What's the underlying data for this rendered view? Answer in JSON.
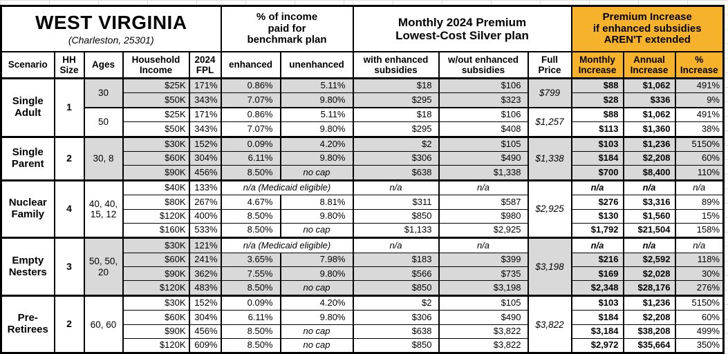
{
  "colors": {
    "accent_orange": "#F6B22A",
    "row_shade": "#D9D9D9",
    "border": "#000000",
    "gridline": "#DCDCDC"
  },
  "title": {
    "state": "WEST VIRGINIA",
    "location": "(Charleston, 25301)"
  },
  "group_headers": {
    "benchmark": "% of income\npaid for\nbenchmark plan",
    "premium": "Monthly 2024 Premium\nLowest-Cost Silver plan",
    "increase": "Premium Increase\nif enhanced subsidies\nAREN'T extended"
  },
  "column_headers": {
    "scenario": "Scenario",
    "hh_size": "HH\nSize",
    "ages": "Ages",
    "income": "Household\nIncome",
    "fpl": "2024\nFPL",
    "enhanced": "enhanced",
    "unenhanced": "unenhanced",
    "with_sub": "with enhanced\nsubsidies",
    "without_sub": "w/out enhanced\nsubsidies",
    "full_price": "Full\nPrice",
    "monthly": "Monthly\nIncrease",
    "annual": "Annual\nIncrease",
    "pct": "%\nIncrease"
  },
  "medicaid_note": "n/a (Medicaid eligible)",
  "na_label": "n/a",
  "no_cap_label": "no cap",
  "scenarios": [
    {
      "name": "Single Adult",
      "hh_size": "1",
      "subgroups": [
        {
          "ages": "30",
          "shaded": true,
          "full_price": "$799",
          "rows": [
            {
              "income": "$25K",
              "fpl": "171%",
              "enhanced": "0.86%",
              "unenhanced": "5.11%",
              "with_sub": "$18",
              "without_sub": "$106",
              "monthly": "$88",
              "annual": "$1,062",
              "pct": "491%"
            },
            {
              "income": "$50K",
              "fpl": "343%",
              "enhanced": "7.07%",
              "unenhanced": "9.80%",
              "with_sub": "$295",
              "without_sub": "$323",
              "monthly": "$28",
              "annual": "$336",
              "pct": "9%"
            }
          ]
        },
        {
          "ages": "50",
          "shaded": false,
          "full_price": "$1,257",
          "rows": [
            {
              "income": "$25K",
              "fpl": "171%",
              "enhanced": "0.86%",
              "unenhanced": "5.11%",
              "with_sub": "$18",
              "without_sub": "$106",
              "monthly": "$88",
              "annual": "$1,062",
              "pct": "491%"
            },
            {
              "income": "$50K",
              "fpl": "343%",
              "enhanced": "7.07%",
              "unenhanced": "9.80%",
              "with_sub": "$295",
              "without_sub": "$408",
              "monthly": "$113",
              "annual": "$1,360",
              "pct": "38%"
            }
          ]
        }
      ]
    },
    {
      "name": "Single Parent",
      "hh_size": "2",
      "subgroups": [
        {
          "ages": "30, 8",
          "shaded": true,
          "full_price": "$1,338",
          "rows": [
            {
              "income": "$30K",
              "fpl": "152%",
              "enhanced": "0.09%",
              "unenhanced": "4.20%",
              "with_sub": "$2",
              "without_sub": "$105",
              "monthly": "$103",
              "annual": "$1,236",
              "pct": "5150%"
            },
            {
              "income": "$60K",
              "fpl": "304%",
              "enhanced": "6.11%",
              "unenhanced": "9.80%",
              "with_sub": "$306",
              "without_sub": "$490",
              "monthly": "$184",
              "annual": "$2,208",
              "pct": "60%"
            },
            {
              "income": "$90K",
              "fpl": "456%",
              "enhanced": "8.50%",
              "unenhanced": "no cap",
              "with_sub": "$638",
              "without_sub": "$1,338",
              "monthly": "$700",
              "annual": "$8,400",
              "pct": "110%"
            }
          ]
        }
      ]
    },
    {
      "name": "Nuclear Family",
      "hh_size": "4",
      "subgroups": [
        {
          "ages": "40, 40, 15, 12",
          "shaded": false,
          "full_price": "$2,925",
          "rows": [
            {
              "income": "$40K",
              "fpl": "133%",
              "medicaid": true,
              "with_sub": "n/a",
              "without_sub": "n/a",
              "monthly": "n/a",
              "annual": "n/a",
              "pct": "n/a"
            },
            {
              "income": "$80K",
              "fpl": "267%",
              "enhanced": "4.67%",
              "unenhanced": "8.81%",
              "with_sub": "$311",
              "without_sub": "$587",
              "monthly": "$276",
              "annual": "$3,316",
              "pct": "89%"
            },
            {
              "income": "$120K",
              "fpl": "400%",
              "enhanced": "8.50%",
              "unenhanced": "9.80%",
              "with_sub": "$850",
              "without_sub": "$980",
              "monthly": "$130",
              "annual": "$1,560",
              "pct": "15%"
            },
            {
              "income": "$160K",
              "fpl": "533%",
              "enhanced": "8.50%",
              "unenhanced": "no cap",
              "with_sub": "$1,133",
              "without_sub": "$2,925",
              "monthly": "$1,792",
              "annual": "$21,504",
              "pct": "158%"
            }
          ]
        }
      ]
    },
    {
      "name": "Empty Nesters",
      "hh_size": "3",
      "subgroups": [
        {
          "ages": "50, 50, 20",
          "shaded": true,
          "full_price": "$3,198",
          "rows": [
            {
              "income": "$30K",
              "fpl": "121%",
              "medicaid": true,
              "with_sub": "n/a",
              "without_sub": "n/a",
              "monthly": "n/a",
              "annual": "n/a",
              "pct": "n/a"
            },
            {
              "income": "$60K",
              "fpl": "241%",
              "enhanced": "3.65%",
              "unenhanced": "7.98%",
              "with_sub": "$183",
              "without_sub": "$399",
              "monthly": "$216",
              "annual": "$2,592",
              "pct": "118%"
            },
            {
              "income": "$90K",
              "fpl": "362%",
              "enhanced": "7.55%",
              "unenhanced": "9.80%",
              "with_sub": "$566",
              "without_sub": "$735",
              "monthly": "$169",
              "annual": "$2,028",
              "pct": "30%"
            },
            {
              "income": "$120K",
              "fpl": "483%",
              "enhanced": "8.50%",
              "unenhanced": "no cap",
              "with_sub": "$850",
              "without_sub": "$3,198",
              "monthly": "$2,348",
              "annual": "$28,176",
              "pct": "276%"
            }
          ]
        }
      ]
    },
    {
      "name": "Pre-Retirees",
      "hh_size": "2",
      "subgroups": [
        {
          "ages": "60, 60",
          "shaded": false,
          "full_price": "$3,822",
          "rows": [
            {
              "income": "$30K",
              "fpl": "152%",
              "enhanced": "0.09%",
              "unenhanced": "4.20%",
              "with_sub": "$2",
              "without_sub": "$105",
              "monthly": "$103",
              "annual": "$1,236",
              "pct": "5150%"
            },
            {
              "income": "$60K",
              "fpl": "304%",
              "enhanced": "6.11%",
              "unenhanced": "9.80%",
              "with_sub": "$306",
              "without_sub": "$490",
              "monthly": "$184",
              "annual": "$2,208",
              "pct": "60%"
            },
            {
              "income": "$90K",
              "fpl": "456%",
              "enhanced": "8.50%",
              "unenhanced": "no cap",
              "with_sub": "$638",
              "without_sub": "$3,822",
              "monthly": "$3,184",
              "annual": "$38,208",
              "pct": "499%"
            },
            {
              "income": "$120K",
              "fpl": "609%",
              "enhanced": "8.50%",
              "unenhanced": "no cap",
              "with_sub": "$850",
              "without_sub": "$3,822",
              "monthly": "$2,972",
              "annual": "$35,664",
              "pct": "350%"
            }
          ]
        }
      ]
    }
  ]
}
